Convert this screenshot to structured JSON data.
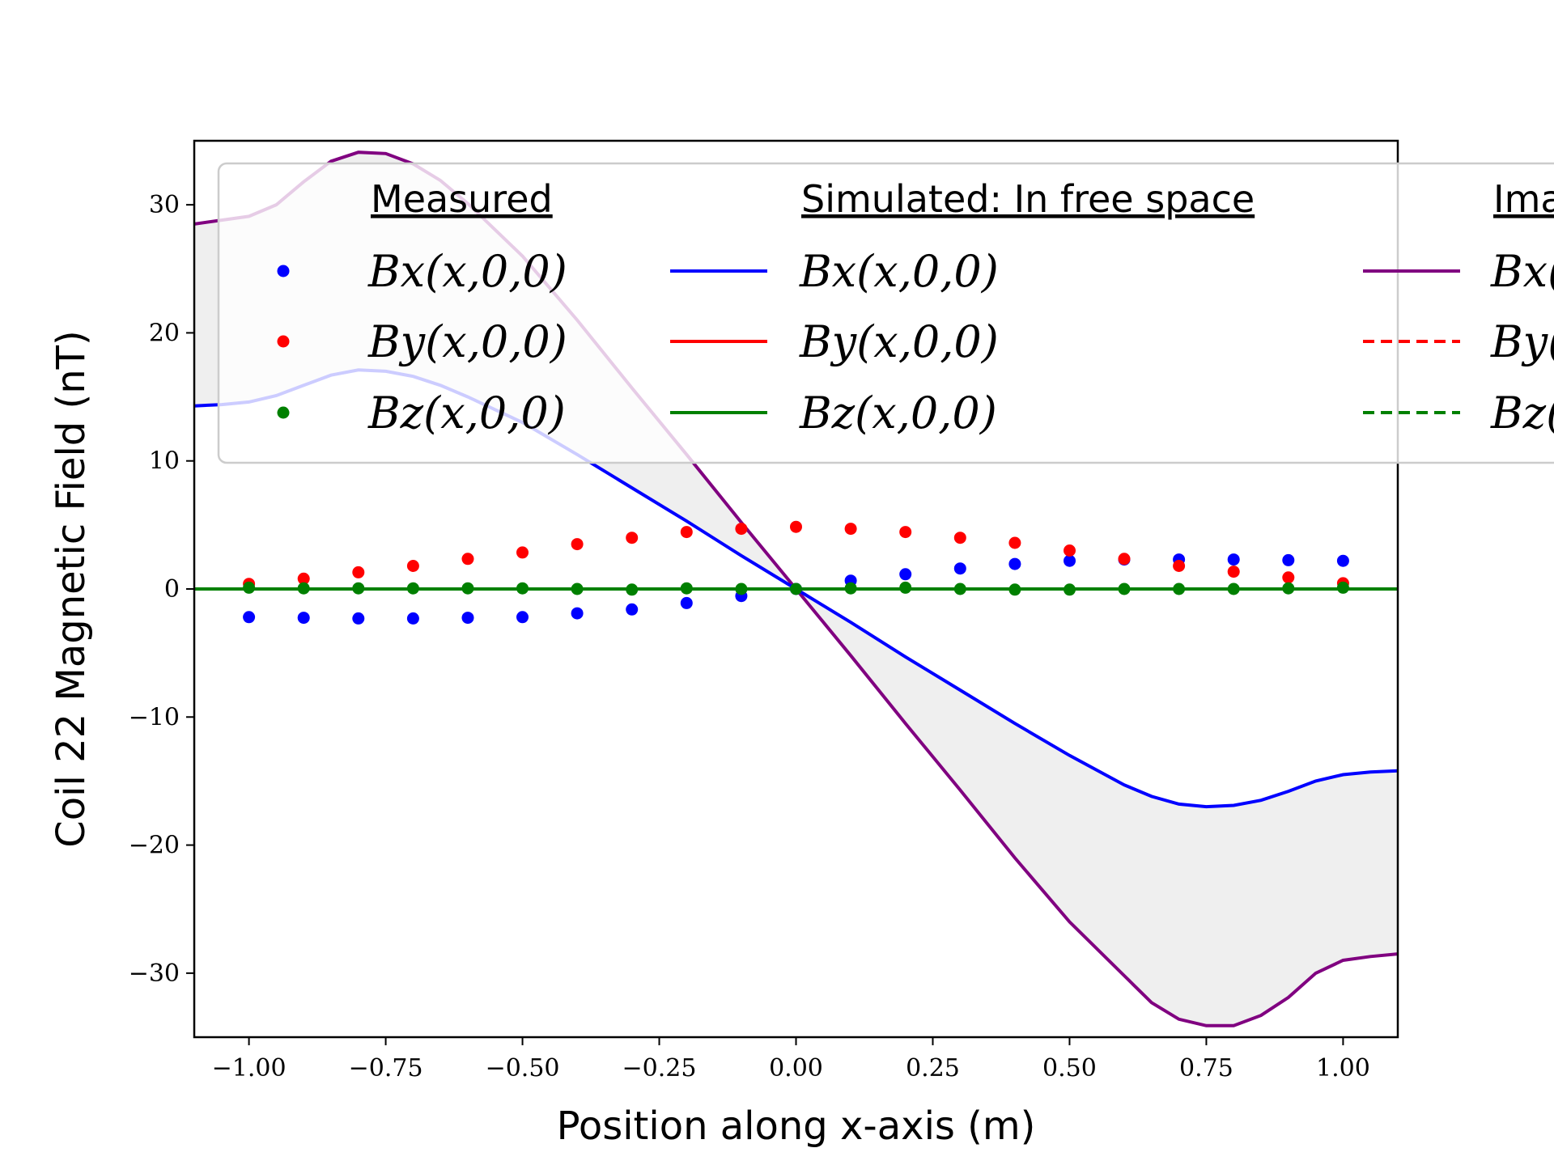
{
  "chart_data": {
    "type": "line",
    "xlabel": "Position along x-axis (m)",
    "ylabel": "Coil 22 Magnetic Field (nT)",
    "xlim": [
      -1.1,
      1.1
    ],
    "ylim": [
      -35,
      35
    ],
    "xticks": [
      -1.0,
      -0.75,
      -0.5,
      -0.25,
      0.0,
      0.25,
      0.5,
      0.75,
      1.0
    ],
    "xtick_labels": [
      "−1.00",
      "−0.75",
      "−0.50",
      "−0.25",
      "0.00",
      "0.25",
      "0.50",
      "0.75",
      "1.00"
    ],
    "yticks": [
      -30,
      -20,
      -10,
      0,
      10,
      20,
      30
    ],
    "ytick_labels": [
      "−30",
      "−20",
      "−10",
      "0",
      "10",
      "20",
      "30"
    ],
    "grid": false,
    "legend_placement": "top",
    "legend": {
      "groups": [
        {
          "title": "Measured",
          "entries": [
            "Bx(x,0,0)",
            "By(x,0,0)",
            "Bz(x,0,0)"
          ]
        },
        {
          "title": "Simulated: In free space",
          "entries": [
            "Bx(x,0,0)",
            "By(x,0,0)",
            "Bz(x,0,0)"
          ]
        },
        {
          "title": "Ima",
          "entries": [
            "Bx(",
            "By(",
            "Bz("
          ]
        }
      ]
    },
    "measured": {
      "x": [
        -1.0,
        -0.9,
        -0.8,
        -0.7,
        -0.6,
        -0.5,
        -0.4,
        -0.3,
        -0.2,
        -0.1,
        0.0,
        0.1,
        0.2,
        0.3,
        0.4,
        0.5,
        0.6,
        0.7,
        0.8,
        0.9,
        1.0
      ],
      "series": [
        {
          "name": "Bx(x,0,0)",
          "color": "#0000ff",
          "values": [
            -2.2,
            -2.25,
            -2.3,
            -2.3,
            -2.25,
            -2.2,
            -1.9,
            -1.6,
            -1.1,
            -0.55,
            0.0,
            0.65,
            1.15,
            1.6,
            1.95,
            2.2,
            2.3,
            2.3,
            2.3,
            2.25,
            2.2
          ]
        },
        {
          "name": "By(x,0,0)",
          "color": "#ff0000",
          "values": [
            0.4,
            0.8,
            1.3,
            1.8,
            2.35,
            2.85,
            3.5,
            4.0,
            4.45,
            4.7,
            4.85,
            4.7,
            4.45,
            4.0,
            3.6,
            3.0,
            2.35,
            1.8,
            1.35,
            0.9,
            0.45
          ]
        },
        {
          "name": "Bz(x,0,0)",
          "color": "#008000",
          "values": [
            0.1,
            0.05,
            0.05,
            0.05,
            0.05,
            0.05,
            0.0,
            -0.05,
            0.05,
            0.0,
            0.0,
            0.05,
            0.1,
            0.0,
            -0.05,
            -0.05,
            0.0,
            0.0,
            0.0,
            0.05,
            0.1
          ]
        }
      ]
    },
    "simulated_free_space": {
      "x": [
        -1.1,
        -1.05,
        -1.0,
        -0.95,
        -0.9,
        -0.85,
        -0.8,
        -0.75,
        -0.7,
        -0.65,
        -0.6,
        -0.5,
        -0.4,
        -0.3,
        -0.2,
        -0.1,
        0.0,
        0.1,
        0.2,
        0.3,
        0.4,
        0.5,
        0.6,
        0.65,
        0.7,
        0.75,
        0.8,
        0.85,
        0.9,
        0.95,
        1.0,
        1.05,
        1.1
      ],
      "series": [
        {
          "name": "Bx(x,0,0)",
          "color": "#0000ff",
          "values": [
            14.3,
            14.4,
            14.6,
            15.1,
            15.9,
            16.7,
            17.1,
            17.0,
            16.6,
            15.9,
            15.0,
            13.0,
            10.5,
            7.9,
            5.3,
            2.6,
            0.0,
            -2.6,
            -5.3,
            -7.9,
            -10.5,
            -13.0,
            -15.3,
            -16.2,
            -16.8,
            -17.0,
            -16.9,
            -16.5,
            -15.8,
            -15.0,
            -14.5,
            -14.3,
            -14.2
          ]
        },
        {
          "name": "By(x,0,0)",
          "color": "#ff0000",
          "values": [
            0,
            0,
            0,
            0,
            0,
            0,
            0,
            0,
            0,
            0,
            0,
            0,
            0,
            0,
            0,
            0,
            0,
            0,
            0,
            0,
            0,
            0,
            0,
            0,
            0,
            0,
            0,
            0,
            0,
            0,
            0,
            0,
            0
          ]
        },
        {
          "name": "Bz(x,0,0)",
          "color": "#008000",
          "values": [
            0,
            0,
            0,
            0,
            0,
            0,
            0,
            0,
            0,
            0,
            0,
            0,
            0,
            0,
            0,
            0,
            0,
            0,
            0,
            0,
            0,
            0,
            0,
            0,
            0,
            0,
            0,
            0,
            0,
            0,
            0,
            0,
            0
          ]
        }
      ]
    },
    "image_series": {
      "x": [
        -1.1,
        -1.05,
        -1.0,
        -0.95,
        -0.9,
        -0.85,
        -0.8,
        -0.75,
        -0.7,
        -0.65,
        -0.6,
        -0.5,
        -0.4,
        -0.3,
        -0.2,
        -0.1,
        0.0,
        0.1,
        0.2,
        0.3,
        0.4,
        0.5,
        0.6,
        0.65,
        0.7,
        0.75,
        0.8,
        0.85,
        0.9,
        0.95,
        1.0,
        1.05,
        1.1
      ],
      "series": [
        {
          "name": "Bx(",
          "color": "#800080",
          "values": [
            28.5,
            28.8,
            29.1,
            30.0,
            31.8,
            33.4,
            34.1,
            34.0,
            33.2,
            31.9,
            30.1,
            26.0,
            21.0,
            15.7,
            10.5,
            5.2,
            0.0,
            -5.2,
            -10.5,
            -15.7,
            -21.0,
            -26.0,
            -30.2,
            -32.3,
            -33.6,
            -34.1,
            -34.1,
            -33.3,
            -31.9,
            -30.0,
            -29.0,
            -28.7,
            -28.5
          ]
        },
        {
          "name": "By(",
          "color": "#ff0000",
          "dashed": true,
          "values": [
            0,
            0,
            0,
            0,
            0,
            0,
            0,
            0,
            0,
            0,
            0,
            0,
            0,
            0,
            0,
            0,
            0,
            0,
            0,
            0,
            0,
            0,
            0,
            0,
            0,
            0,
            0,
            0,
            0,
            0,
            0,
            0,
            0
          ]
        },
        {
          "name": "Bz(",
          "color": "#008000",
          "dashed": true,
          "values": [
            0,
            0,
            0,
            0,
            0,
            0,
            0,
            0,
            0,
            0,
            0,
            0,
            0,
            0,
            0,
            0,
            0,
            0,
            0,
            0,
            0,
            0,
            0,
            0,
            0,
            0,
            0,
            0,
            0,
            0,
            0,
            0,
            0
          ]
        }
      ]
    },
    "fill_between": {
      "between": [
        "simulated_free_space.Bx(x,0,0)",
        "image_series.Bx("
      ],
      "color": "#d3d3d3"
    }
  }
}
